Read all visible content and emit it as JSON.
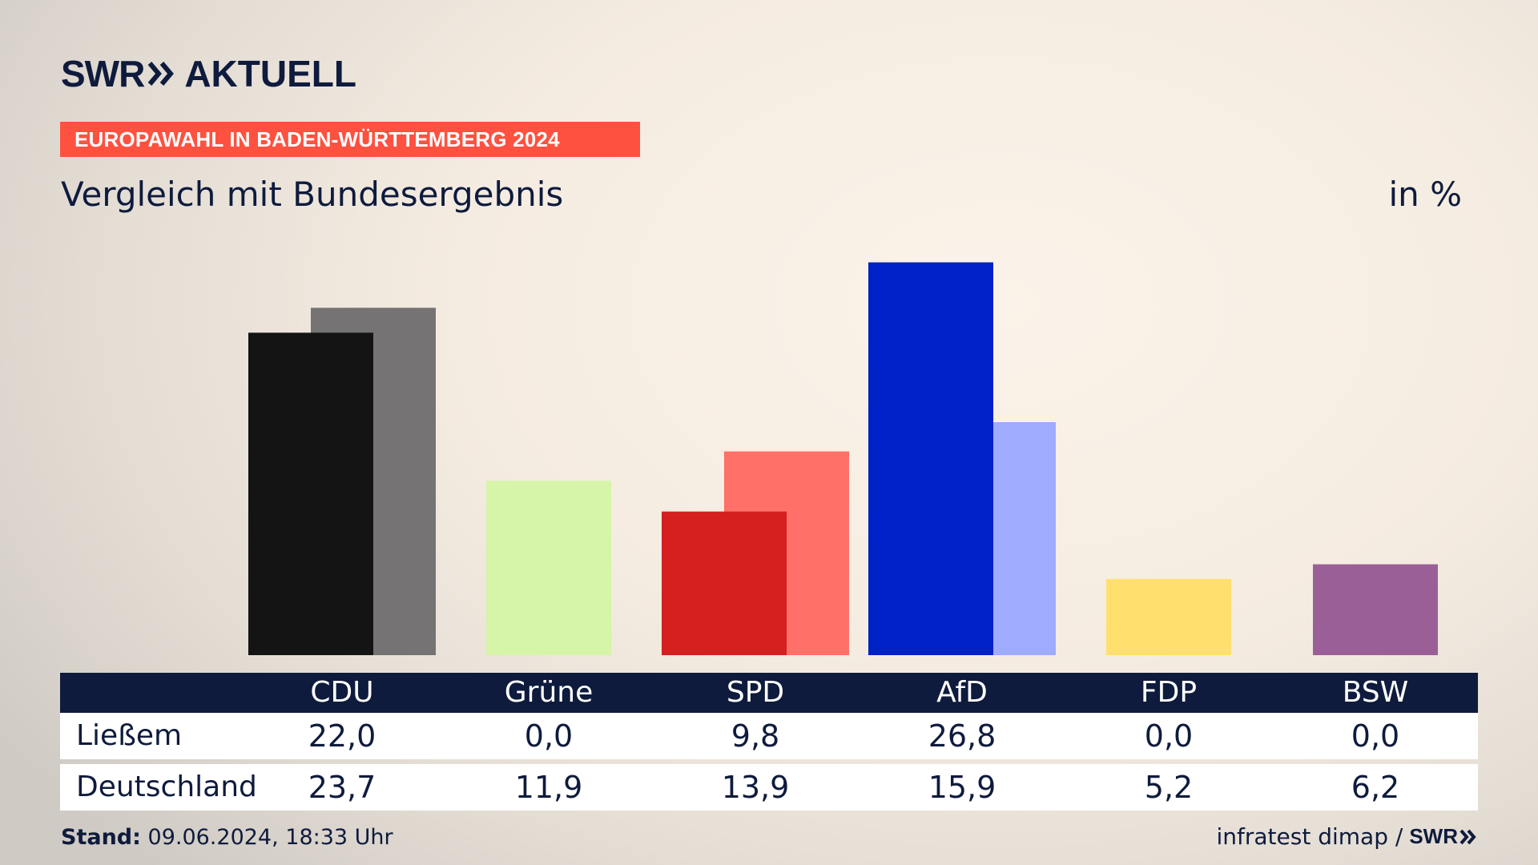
{
  "header": {
    "logo_text": "SWR",
    "brand_suffix": "AKTUELL",
    "banner": "EUROPAWAHL IN BADEN-WÜRTTEMBERG 2024",
    "subtitle": "Vergleich mit Bundesergebnis",
    "unit": "in %"
  },
  "colors": {
    "banner": "#ff5140",
    "navy": "#0e1b3d"
  },
  "chart_data": {
    "type": "bar",
    "title": "Vergleich mit Bundesergebnis",
    "ylabel": "in %",
    "ylim": [
      0,
      30
    ],
    "categories": [
      "CDU",
      "Grüne",
      "SPD",
      "AfD",
      "FDP",
      "BSW"
    ],
    "series": [
      {
        "name": "Ließem",
        "values": [
          22.0,
          0.0,
          9.8,
          26.8,
          0.0,
          0.0
        ],
        "colors": [
          "#141414",
          "#d6f5a8",
          "#d61f1f",
          "#0020c8",
          "#ffe06e",
          "#9b5f98"
        ]
      },
      {
        "name": "Deutschland",
        "values": [
          23.7,
          11.9,
          13.9,
          15.9,
          5.2,
          6.2
        ],
        "colors": [
          "#757373",
          "#d6f5a8",
          "#ff7068",
          "#9eabff",
          "#ffe06e",
          "#9b5f98"
        ]
      }
    ],
    "display_values": [
      [
        "22,0",
        "0,0",
        "9,8",
        "26,8",
        "0,0",
        "0,0"
      ],
      [
        "23,7",
        "11,9",
        "13,9",
        "15,9",
        "5,2",
        "6,2"
      ]
    ],
    "legend": "table-below"
  },
  "footer": {
    "stand_label": "Stand:",
    "stand_value": "09.06.2024, 18:33 Uhr",
    "source": "infratest dimap /",
    "source_logo": "SWR"
  }
}
